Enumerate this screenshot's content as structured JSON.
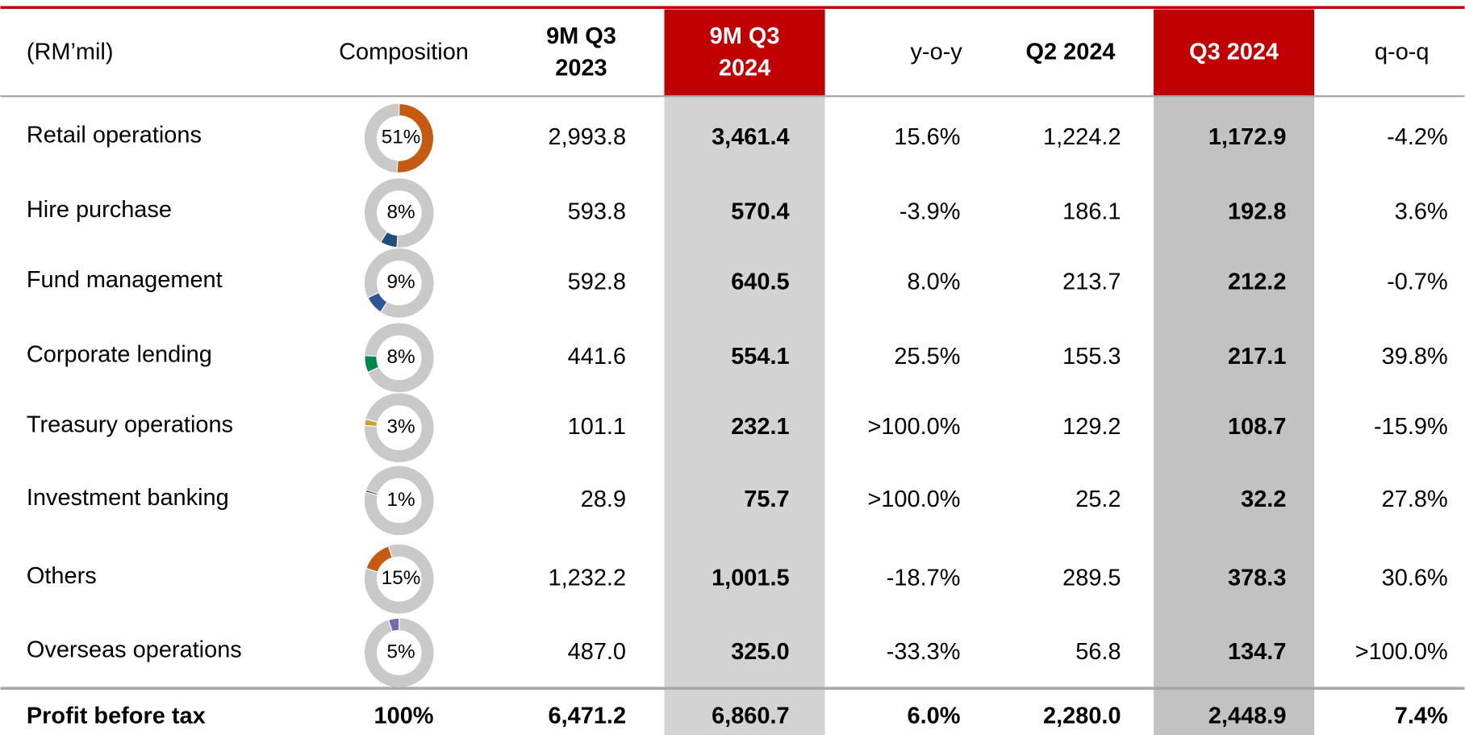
{
  "table": {
    "header": [
      [
        "(RM’mil)"
      ],
      [
        "Composition"
      ],
      [
        "9M Q3",
        "2023"
      ],
      [
        "9M Q3",
        "2024"
      ],
      [
        "y-o-y"
      ],
      [
        "Q2 2024"
      ],
      [
        "Q3 2024"
      ],
      [
        "q-o-q"
      ]
    ],
    "rows": [
      {
        "label": "Retail operations",
        "composition": {
          "value": 51,
          "label": "51%"
        },
        "color": "#c55a11",
        "cells": [
          "2,993.8",
          "3,461.4",
          "15.6%",
          "1,224.2",
          "1,172.9",
          "-4.2%"
        ]
      },
      {
        "label": "Hire purchase",
        "composition": {
          "value": 8,
          "label": "8%"
        },
        "color": "#1f4e79",
        "cells": [
          "593.8",
          "570.4",
          "-3.9%",
          "186.1",
          "192.8",
          "3.6%"
        ]
      },
      {
        "label": "Fund management",
        "composition": {
          "value": 9,
          "label": "9%"
        },
        "color": "#2f5597",
        "cells": [
          "592.8",
          "640.5",
          "8.0%",
          "213.7",
          "212.2",
          "-0.7%"
        ]
      },
      {
        "label": "Corporate lending",
        "composition": {
          "value": 8,
          "label": "8%"
        },
        "color": "#00874a",
        "cells": [
          "441.6",
          "554.1",
          "25.5%",
          "155.3",
          "217.1",
          "39.8%"
        ]
      },
      {
        "label": "Treasury operations",
        "composition": {
          "value": 3,
          "label": "3%"
        },
        "color": "#c9a227",
        "cells": [
          "101.1",
          "232.1",
          ">100.0%",
          "129.2",
          "108.7",
          "-15.9%"
        ]
      },
      {
        "label": "Investment banking",
        "composition": {
          "value": 1,
          "label": "1%"
        },
        "color": "#333333",
        "cells": [
          "28.9",
          "75.7",
          ">100.0%",
          "25.2",
          "32.2",
          "27.8%"
        ]
      },
      {
        "label": "Others",
        "composition": {
          "value": 15,
          "label": "15%"
        },
        "color": "#c55a11",
        "cells": [
          "1,232.2",
          "1,001.5",
          "-18.7%",
          "289.5",
          "378.3",
          "30.6%"
        ]
      },
      {
        "label": "Overseas operations",
        "composition": {
          "value": 5,
          "label": "5%"
        },
        "color": "#6f6faf",
        "cells": [
          "487.0",
          "325.0",
          "-33.3%",
          "56.8",
          "134.7",
          ">100.0%"
        ]
      }
    ],
    "total": {
      "label": "Profit before tax",
      "composition": "100%",
      "cells": [
        "6,471.2",
        "6,860.7",
        "6.0%",
        "2,280.0",
        "2,448.9",
        "7.4%"
      ]
    }
  }
}
